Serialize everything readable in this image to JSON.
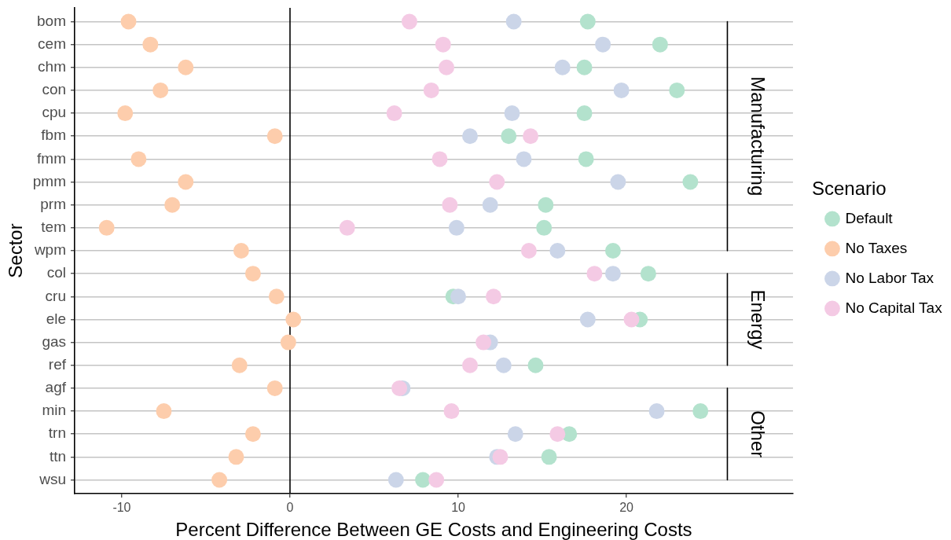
{
  "chart_data": {
    "type": "scatter",
    "orientation": "horizontal",
    "xlabel": "Percent Difference Between GE Costs and Engineering Costs",
    "ylabel": "Sector",
    "legend_title": "Scenario",
    "categories": [
      "bom",
      "cem",
      "chm",
      "con",
      "cpu",
      "fbm",
      "fmm",
      "pmm",
      "prm",
      "tem",
      "wpm",
      "col",
      "cru",
      "ele",
      "gas",
      "ref",
      "agf",
      "min",
      "trn",
      "ttn",
      "wsu"
    ],
    "series": [
      {
        "name": "Default",
        "color": "#b3e2cd",
        "values": [
          17.7,
          22.0,
          17.5,
          23.0,
          17.5,
          13.0,
          17.6,
          23.8,
          15.2,
          15.1,
          19.2,
          21.3,
          9.7,
          20.8,
          null,
          14.6,
          null,
          24.4,
          16.6,
          15.4,
          7.9
        ]
      },
      {
        "name": "No Taxes",
        "color": "#fdcdac",
        "values": [
          -9.6,
          -8.3,
          -6.2,
          -7.7,
          -9.8,
          -0.9,
          -9.0,
          -6.2,
          -7.0,
          -10.9,
          -2.9,
          -2.2,
          -0.8,
          0.2,
          -0.1,
          -3.0,
          -0.9,
          -7.5,
          -2.2,
          -3.2,
          -4.2
        ]
      },
      {
        "name": "No Labor Tax",
        "color": "#cbd5e8",
        "values": [
          13.3,
          18.6,
          16.2,
          19.7,
          13.2,
          10.7,
          13.9,
          19.5,
          11.9,
          9.9,
          15.9,
          19.2,
          10.0,
          17.7,
          11.9,
          12.7,
          6.7,
          21.8,
          13.4,
          12.3,
          6.3
        ]
      },
      {
        "name": "No Capital Tax",
        "color": "#f4cae4",
        "values": [
          7.1,
          9.1,
          9.3,
          8.4,
          6.2,
          14.3,
          8.9,
          12.3,
          9.5,
          3.4,
          14.2,
          18.1,
          12.1,
          20.3,
          11.5,
          10.7,
          6.5,
          9.6,
          15.9,
          12.5,
          8.7
        ]
      },
      {
        "name": "Manufacturing",
        "type": "line",
        "marker": "none",
        "color": "#000000",
        "values": [
          26,
          26,
          26,
          26,
          26,
          26,
          26,
          26,
          26,
          26,
          26,
          null,
          null,
          null,
          null,
          null,
          null,
          null,
          null,
          null,
          null
        ]
      },
      {
        "name": "Energy",
        "type": "line",
        "marker": "none",
        "color": "#000000",
        "values": [
          null,
          null,
          null,
          null,
          null,
          null,
          null,
          null,
          null,
          null,
          null,
          26,
          26,
          26,
          26,
          26,
          null,
          null,
          null,
          null,
          null
        ]
      },
      {
        "name": "Other",
        "type": "line",
        "marker": "none",
        "color": "#000000",
        "values": [
          null,
          null,
          null,
          null,
          null,
          null,
          null,
          null,
          null,
          null,
          null,
          null,
          null,
          null,
          null,
          null,
          26,
          26,
          26,
          26,
          26
        ]
      }
    ],
    "xlim": [
      -12.8,
      29.9
    ],
    "xticks": [
      -10,
      0,
      10,
      20
    ],
    "ref_lines": [
      {
        "axis": "x",
        "value": 0,
        "color": "#000000"
      }
    ],
    "grid": "y",
    "legend": "right",
    "marker": "circle"
  }
}
